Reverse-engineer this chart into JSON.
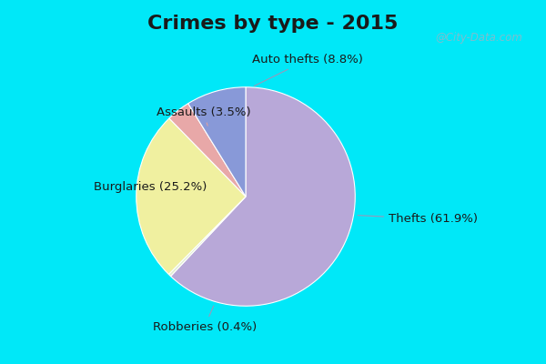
{
  "title": "Crimes by type - 2015",
  "slices": [
    {
      "label": "Thefts (61.9%)",
      "value": 61.9,
      "color": "#b8a8d8"
    },
    {
      "label": "Auto thefts (8.8%)",
      "value": 8.8,
      "color": "#8899d8"
    },
    {
      "label": "Assaults (3.5%)",
      "value": 3.5,
      "color": "#e8a8a8"
    },
    {
      "label": "Burglaries (25.2%)",
      "value": 25.2,
      "color": "#f0f0a0"
    },
    {
      "label": "Robberies (0.4%)",
      "value": 0.4,
      "color": "#e0ecd0"
    }
  ],
  "bg_cyan": "#00e8f8",
  "bg_body": "#d4eee4",
  "title_fontsize": 16,
  "label_fontsize": 9.5,
  "watermark": "@City-Data.com",
  "border_width": 8
}
